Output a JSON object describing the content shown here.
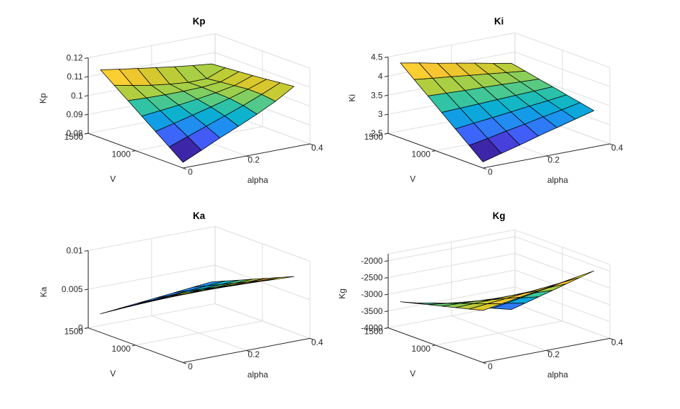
{
  "figure": {
    "kind": "MATLAB-style figure with 2x2 grid of 3D surface plots",
    "background": "#ffffff"
  },
  "colors": {
    "background": "#ffffff",
    "grid": "#dedede",
    "axis": "#262626",
    "tick_text": "#262626",
    "title_text": "#000000",
    "surface_edge": "#000000",
    "colormap": "parula"
  },
  "chart_data": [
    {
      "type": "surface",
      "title": "Kp",
      "xlabel": "alpha",
      "ylabel": "V",
      "zlabel": "Kp",
      "view": "azimuth -37.5 deg, elevation 30 deg",
      "grid": true,
      "x": [
        0,
        0.0583,
        0.1167,
        0.175,
        0.2333,
        0.2917,
        0.35
      ],
      "y": [
        500,
        645,
        790,
        935,
        1080,
        1225,
        1370
      ],
      "z": [
        [
          0.083,
          0.0875,
          0.0922,
          0.0965,
          0.101,
          0.106,
          0.112
        ],
        [
          0.0885,
          0.0921,
          0.0957,
          0.0993,
          0.103,
          0.107,
          0.1113
        ],
        [
          0.094,
          0.0964,
          0.0989,
          0.1014,
          0.1041,
          0.1071,
          0.1105
        ],
        [
          0.0995,
          0.1005,
          0.1016,
          0.1029,
          0.1044,
          0.1063,
          0.1098
        ],
        [
          0.105,
          0.1046,
          0.1044,
          0.1044,
          0.1047,
          0.1056,
          0.1092
        ],
        [
          0.1105,
          0.1085,
          0.1068,
          0.1055,
          0.1046,
          0.1047,
          0.1086
        ],
        [
          0.116,
          0.1145,
          0.113,
          0.1116,
          0.1102,
          0.109,
          0.108
        ]
      ],
      "xlim": [
        0,
        0.4
      ],
      "ylim": [
        500,
        1500
      ],
      "zlim": [
        0.08,
        0.12
      ],
      "xticks": [
        {
          "v": 0,
          "t": "0"
        },
        {
          "v": 0.2,
          "t": "0.2"
        },
        {
          "v": 0.4,
          "t": "0.4"
        }
      ],
      "yticks": [
        {
          "v": 1000,
          "t": "1000"
        },
        {
          "v": 1500,
          "t": "1500"
        }
      ],
      "zticks": [
        {
          "v": 0.08,
          "t": "0.08"
        },
        {
          "v": 0.09,
          "t": "0.09"
        },
        {
          "v": 0.1,
          "t": "0.1"
        },
        {
          "v": 0.11,
          "t": "0.11"
        },
        {
          "v": 0.12,
          "t": "0.12"
        }
      ]
    },
    {
      "type": "surface",
      "title": "Ki",
      "xlabel": "alpha",
      "ylabel": "V",
      "zlabel": "Ki",
      "view": "azimuth -37.5 deg, elevation 30 deg",
      "grid": true,
      "x": [
        0,
        0.0583,
        0.1167,
        0.175,
        0.2333,
        0.2917,
        0.35
      ],
      "y": [
        500,
        645,
        790,
        935,
        1080,
        1225,
        1370
      ],
      "z": [
        [
          2.66,
          2.79,
          2.92,
          3.06,
          3.19,
          3.32,
          3.45
        ],
        [
          2.96,
          3.05,
          3.15,
          3.24,
          3.34,
          3.43,
          3.53
        ],
        [
          3.26,
          3.32,
          3.37,
          3.43,
          3.49,
          3.54,
          3.6
        ],
        [
          3.56,
          3.58,
          3.6,
          3.62,
          3.64,
          3.66,
          3.68
        ],
        [
          3.86,
          3.84,
          3.82,
          3.81,
          3.79,
          3.77,
          3.75
        ],
        [
          4.16,
          4.1,
          4.05,
          3.99,
          3.94,
          3.88,
          3.83
        ],
        [
          4.46,
          4.37,
          4.27,
          4.18,
          4.09,
          3.99,
          3.9
        ]
      ],
      "xlim": [
        0,
        0.4
      ],
      "ylim": [
        500,
        1500
      ],
      "zlim": [
        2.5,
        4.5
      ],
      "xticks": [
        {
          "v": 0,
          "t": "0"
        },
        {
          "v": 0.2,
          "t": "0.2"
        },
        {
          "v": 0.4,
          "t": "0.4"
        }
      ],
      "yticks": [
        {
          "v": 1000,
          "t": "1000"
        },
        {
          "v": 1500,
          "t": "1500"
        }
      ],
      "zticks": [
        {
          "v": 2.5,
          "t": "2.5"
        },
        {
          "v": 3,
          "t": "3"
        },
        {
          "v": 3.5,
          "t": "3.5"
        },
        {
          "v": 4,
          "t": "4"
        },
        {
          "v": 4.5,
          "t": "4.5"
        }
      ]
    },
    {
      "type": "surface",
      "title": "Ka",
      "xlabel": "alpha",
      "ylabel": "V",
      "zlabel": "Ka",
      "view": "azimuth -37.5 deg, elevation 30 deg",
      "grid": true,
      "x": [
        0,
        0.0583,
        0.1167,
        0.175,
        0.2333,
        0.2917,
        0.35
      ],
      "y": [
        500,
        645,
        790,
        935,
        1080,
        1225,
        1370
      ],
      "z": [
        [
          0.009,
          0.0089,
          0.0088,
          0.0087,
          0.0086,
          0.0085,
          0.0084
        ],
        [
          0.0079,
          0.00786,
          0.00781,
          0.00777,
          0.00772,
          0.00768,
          0.00763
        ],
        [
          0.0068,
          0.00681,
          0.00682,
          0.00684,
          0.00685,
          0.00686,
          0.00687
        ],
        [
          0.0057,
          0.00577,
          0.00583,
          0.0059,
          0.00597,
          0.00603,
          0.0061
        ],
        [
          0.0046,
          0.00472,
          0.00484,
          0.00497,
          0.00509,
          0.00521,
          0.00533
        ],
        [
          0.0035,
          0.00368,
          0.00386,
          0.00404,
          0.00421,
          0.00439,
          0.00457
        ],
        [
          0.0024,
          0.00263,
          0.00287,
          0.0031,
          0.00333,
          0.00357,
          0.0038
        ]
      ],
      "xlim": [
        0,
        0.4
      ],
      "ylim": [
        500,
        1500
      ],
      "zlim": [
        0,
        0.01
      ],
      "xticks": [
        {
          "v": 0,
          "t": "0"
        },
        {
          "v": 0.2,
          "t": "0.2"
        },
        {
          "v": 0.4,
          "t": "0.4"
        }
      ],
      "yticks": [
        {
          "v": 1000,
          "t": "1000"
        },
        {
          "v": 1500,
          "t": "1500"
        }
      ],
      "zticks": [
        {
          "v": 0,
          "t": "0"
        },
        {
          "v": 0.005,
          "t": "0.005"
        },
        {
          "v": 0.01,
          "t": "0.01"
        }
      ]
    },
    {
      "type": "surface",
      "title": "Kg",
      "xlabel": "alpha",
      "ylabel": "V",
      "zlabel": "Kg",
      "view": "azimuth -37.5 deg, elevation 30 deg",
      "grid": true,
      "x": [
        0,
        0.0583,
        0.1167,
        0.175,
        0.2333,
        0.2917,
        0.35
      ],
      "y": [
        500,
        645,
        790,
        935,
        1080,
        1225,
        1370
      ],
      "z": [
        [
          -2450,
          -2358,
          -2267,
          -2175,
          -2083,
          -1992,
          -1900
        ],
        [
          -2557,
          -2504,
          -2452,
          -2399,
          -2347,
          -2294,
          -2242
        ],
        [
          -2663,
          -2650,
          -2637,
          -2623,
          -2610,
          -2597,
          -2583
        ],
        [
          -2770,
          -2796,
          -2822,
          -2848,
          -2873,
          -2899,
          -2925
        ],
        [
          -2877,
          -2942,
          -3007,
          -3072,
          -3137,
          -3202,
          -3267
        ],
        [
          -2983,
          -3088,
          -3192,
          -3296,
          -3400,
          -3504,
          -3608
        ],
        [
          -3090,
          -3233,
          -3377,
          -3520,
          -3663,
          -3807,
          -3950
        ]
      ],
      "xlim": [
        0,
        0.4
      ],
      "ylim": [
        500,
        1500
      ],
      "zlim": [
        -4000,
        -1800
      ],
      "xticks": [
        {
          "v": 0,
          "t": "0"
        },
        {
          "v": 0.2,
          "t": "0.2"
        },
        {
          "v": 0.4,
          "t": "0.4"
        }
      ],
      "yticks": [
        {
          "v": 1000,
          "t": "1000"
        },
        {
          "v": 1500,
          "t": "1500"
        }
      ],
      "zticks": [
        {
          "v": -4000,
          "t": "-4000"
        },
        {
          "v": -3500,
          "t": "-3500"
        },
        {
          "v": -3000,
          "t": "-3000"
        },
        {
          "v": -2500,
          "t": "-2500"
        },
        {
          "v": -2000,
          "t": "-2000"
        }
      ]
    }
  ]
}
